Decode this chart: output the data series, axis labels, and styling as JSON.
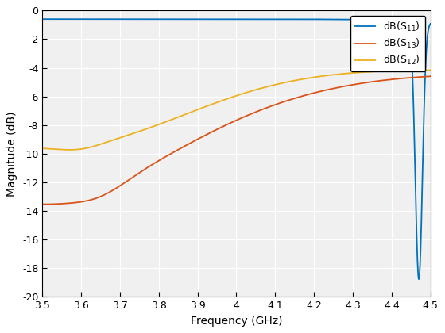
{
  "xlabel": "Frequency (GHz)",
  "ylabel": "Magnitude (dB)",
  "xlim": [
    3.5,
    4.5
  ],
  "ylim": [
    -20,
    0
  ],
  "xticks": [
    3.5,
    3.6,
    3.7,
    3.8,
    3.9,
    4.0,
    4.1,
    4.2,
    4.3,
    4.4,
    4.5
  ],
  "yticks": [
    0,
    -2,
    -4,
    -6,
    -8,
    -10,
    -12,
    -14,
    -16,
    -18,
    -20
  ],
  "color_S11": "#0072BD",
  "color_S13": "#D95319",
  "color_S12": "#EDB120",
  "figsize": [
    5.6,
    4.2
  ],
  "dpi": 100,
  "bg_color": "#F0F0F0",
  "grid_color": "#FFFFFF",
  "linewidth": 1.3
}
